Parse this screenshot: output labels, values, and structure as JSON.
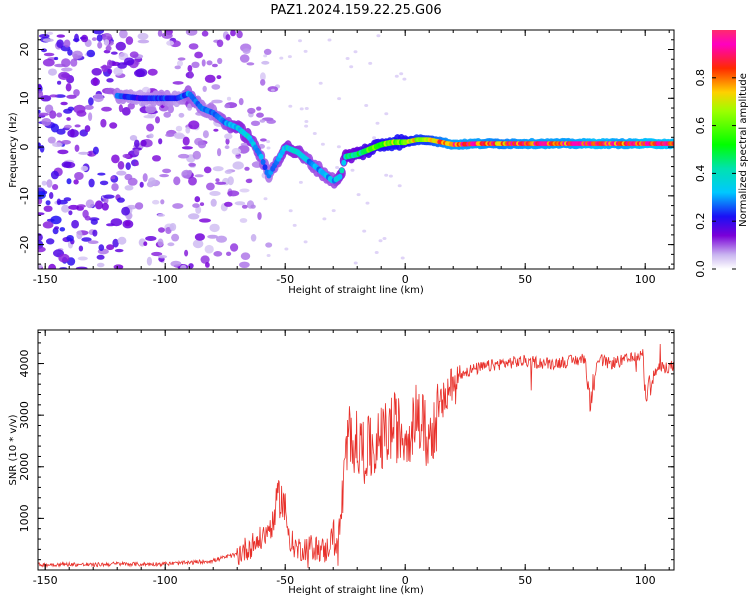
{
  "title": "PAZ1.2024.159.22.25.G06",
  "chart_data": [
    {
      "type": "heatmap",
      "xlabel": "Height of straight line (km)",
      "ylabel": "Frequency (Hz)",
      "xlim": [
        -153,
        112
      ],
      "ylim": [
        -25,
        24
      ],
      "xticks": [
        -150,
        -100,
        -50,
        0,
        50,
        100
      ],
      "yticks": [
        -20,
        -10,
        0,
        10,
        20
      ],
      "colorbar": {
        "label": "Normalized spectral amplitude",
        "range": [
          0,
          1
        ],
        "ticks": [
          0.0,
          0.2,
          0.4,
          0.6,
          0.8
        ],
        "colormap": "gist_ncar-like (white-violet-blue-cyan-green-yellow-red-magenta)"
      },
      "ridge": {
        "description": "main spectral line (frequency vs height)",
        "x": [
          -120,
          -110,
          -100,
          -95,
          -90,
          -85,
          -80,
          -75,
          -70,
          -65,
          -60,
          -57,
          -50,
          -45,
          -40,
          -35,
          -30,
          -27,
          -25,
          -20,
          -15,
          -10,
          -5,
          0,
          5,
          10,
          15,
          20,
          30,
          40,
          50,
          60,
          70,
          80,
          90,
          100,
          112
        ],
        "y": [
          10.5,
          10,
          10,
          10,
          11,
          8,
          7,
          5,
          4,
          2,
          -2,
          -6,
          0,
          -1,
          -3,
          -5,
          -7,
          -6,
          -2,
          -1.5,
          -0.5,
          0.5,
          1,
          1,
          1.5,
          1.5,
          1,
          0.5,
          0.7,
          0.7,
          0.7,
          0.7,
          0.7,
          0.7,
          0.7,
          0.7,
          0.7
        ],
        "amplitude": [
          0.25,
          0.2,
          0.25,
          0.2,
          0.3,
          0.25,
          0.25,
          0.3,
          0.35,
          0.35,
          0.3,
          0.25,
          0.35,
          0.35,
          0.3,
          0.3,
          0.3,
          0.35,
          0.4,
          0.45,
          0.55,
          0.6,
          0.65,
          0.6,
          0.7,
          0.7,
          0.8,
          0.85,
          0.85,
          0.8,
          0.85,
          0.85,
          0.85,
          0.9,
          0.85,
          0.9,
          0.9
        ]
      }
    },
    {
      "type": "line",
      "xlabel": "Height of straight line (km)",
      "ylabel": "SNR (10 * v/v)",
      "xlim": [
        -153,
        112
      ],
      "ylim": [
        0,
        4650
      ],
      "xticks": [
        -150,
        -100,
        -50,
        0,
        50,
        100
      ],
      "yticks": [
        1000,
        2000,
        3000,
        4000
      ],
      "color": "#e8302a",
      "series": [
        {
          "x": [
            -153,
            -140,
            -130,
            -120,
            -110,
            -100,
            -90,
            -80,
            -75,
            -70,
            -65,
            -60,
            -55,
            -52,
            -50,
            -48,
            -45,
            -40,
            -35,
            -33,
            -30,
            -28,
            -25,
            -23,
            -20,
            -15,
            -10,
            -5,
            0,
            5,
            10,
            15,
            18,
            20,
            25,
            30,
            40,
            50,
            60,
            70,
            75,
            77,
            80,
            85,
            90,
            95,
            99,
            100,
            105,
            112
          ],
          "y": [
            100,
            110,
            100,
            120,
            110,
            120,
            140,
            180,
            250,
            300,
            450,
            600,
            900,
            1500,
            1100,
            600,
            400,
            450,
            400,
            350,
            700,
            400,
            2000,
            2700,
            2400,
            2300,
            2500,
            2800,
            2600,
            3000,
            2500,
            3200,
            3400,
            3700,
            3850,
            3900,
            4000,
            4050,
            4000,
            4050,
            4100,
            3200,
            4100,
            4000,
            4050,
            4100,
            4200,
            3400,
            3900,
            3950
          ]
        }
      ]
    }
  ]
}
